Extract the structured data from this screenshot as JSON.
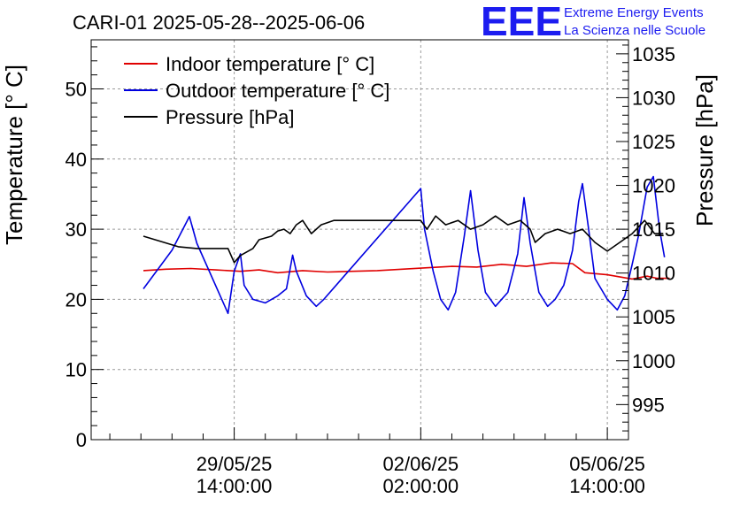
{
  "chart_data": {
    "type": "line",
    "title": "CARI-01 2025-05-28--2025-06-06",
    "ylabel_left": "Temperature [° C]",
    "ylabel_right": "Pressure [hPa]",
    "ylim_left": [
      0,
      57
    ],
    "ylim_right": [
      991,
      1036.6
    ],
    "xlim_days": [
      -1.15,
      3.17
    ],
    "legend_position": "top-left",
    "grid": true,
    "y_ticks_left": [
      "0",
      "10",
      "20",
      "30",
      "40",
      "50"
    ],
    "y_ticks_right": [
      "995",
      "1000",
      "1005",
      "1010",
      "1015",
      "1020",
      "1025",
      "1030",
      "1035"
    ],
    "x_ticks": [
      {
        "date": "29/05/25",
        "time": "14:00:00",
        "pos": 0.0
      },
      {
        "date": "02/06/25",
        "time": "02:00:00",
        "pos": 1.5
      },
      {
        "date": "05/06/25",
        "time": "14:00:00",
        "pos": 3.0
      }
    ],
    "series": [
      {
        "name": "Indoor temperature [° C]",
        "color": "#e00000",
        "axis": "left",
        "points": [
          [
            -0.73,
            24.1
          ],
          [
            -0.55,
            24.3
          ],
          [
            -0.35,
            24.4
          ],
          [
            -0.15,
            24.2
          ],
          [
            0.05,
            24.0
          ],
          [
            0.2,
            24.2
          ],
          [
            0.35,
            23.8
          ],
          [
            0.55,
            24.1
          ],
          [
            0.75,
            23.9
          ],
          [
            0.95,
            24.0
          ],
          [
            1.15,
            24.1
          ],
          [
            1.35,
            24.3
          ],
          [
            1.55,
            24.5
          ],
          [
            1.75,
            24.7
          ],
          [
            1.95,
            24.6
          ],
          [
            2.15,
            25.0
          ],
          [
            2.35,
            24.7
          ],
          [
            2.55,
            25.2
          ],
          [
            2.72,
            25.1
          ],
          [
            2.82,
            23.8
          ],
          [
            3.0,
            23.5
          ],
          [
            3.2,
            22.9
          ],
          [
            3.32,
            23.3
          ],
          [
            3.4,
            23.0
          ],
          [
            3.5,
            23.0
          ]
        ]
      },
      {
        "name": "Outdoor temperature [° C]",
        "color": "#0000e0",
        "axis": "left",
        "points": [
          [
            -0.73,
            21.5
          ],
          [
            -0.5,
            27.0
          ],
          [
            -0.36,
            31.8
          ],
          [
            -0.3,
            28.0
          ],
          [
            -0.05,
            18.0
          ],
          [
            0.0,
            24.0
          ],
          [
            0.05,
            26.5
          ],
          [
            0.08,
            22.0
          ],
          [
            0.15,
            20.0
          ],
          [
            0.25,
            19.5
          ],
          [
            0.35,
            20.5
          ],
          [
            0.42,
            21.5
          ],
          [
            0.47,
            26.3
          ],
          [
            0.5,
            24.0
          ],
          [
            0.58,
            20.5
          ],
          [
            0.66,
            19.0
          ],
          [
            0.72,
            20.0
          ],
          [
            1.5,
            35.8
          ],
          [
            1.53,
            30.0
          ],
          [
            1.6,
            24.0
          ],
          [
            1.66,
            20.0
          ],
          [
            1.72,
            18.5
          ],
          [
            1.78,
            21.0
          ],
          [
            1.85,
            29.0
          ],
          [
            1.9,
            35.5
          ],
          [
            1.96,
            27.0
          ],
          [
            2.02,
            21.0
          ],
          [
            2.1,
            19.0
          ],
          [
            2.2,
            21.0
          ],
          [
            2.28,
            26.5
          ],
          [
            2.33,
            34.5
          ],
          [
            2.38,
            28.0
          ],
          [
            2.45,
            21.0
          ],
          [
            2.52,
            19.0
          ],
          [
            2.58,
            20.0
          ],
          [
            2.65,
            22.0
          ],
          [
            2.72,
            27.0
          ],
          [
            2.77,
            34.0
          ],
          [
            2.8,
            36.5
          ],
          [
            2.85,
            30.0
          ],
          [
            2.9,
            23.0
          ],
          [
            3.0,
            20.0
          ],
          [
            3.08,
            18.5
          ],
          [
            3.14,
            20.5
          ],
          [
            3.2,
            25.0
          ],
          [
            3.25,
            29.0
          ],
          [
            3.32,
            36.0
          ],
          [
            3.37,
            37.5
          ],
          [
            3.42,
            30.0
          ],
          [
            3.46,
            26.0
          ]
        ]
      },
      {
        "name": "Pressure [hPa]",
        "color": "#000000",
        "axis": "right",
        "points": [
          [
            -0.73,
            1014.2
          ],
          [
            -0.45,
            1013.0
          ],
          [
            -0.3,
            1012.8
          ],
          [
            -0.05,
            1012.8
          ],
          [
            0.0,
            1011.2
          ],
          [
            0.05,
            1012.0
          ],
          [
            0.15,
            1012.8
          ],
          [
            0.2,
            1013.8
          ],
          [
            0.3,
            1014.2
          ],
          [
            0.35,
            1014.8
          ],
          [
            0.4,
            1015.0
          ],
          [
            0.45,
            1014.5
          ],
          [
            0.5,
            1015.5
          ],
          [
            0.55,
            1016.0
          ],
          [
            0.62,
            1014.5
          ],
          [
            0.7,
            1015.5
          ],
          [
            0.8,
            1016.0
          ],
          [
            1.5,
            1016.0
          ],
          [
            1.55,
            1015.0
          ],
          [
            1.62,
            1016.5
          ],
          [
            1.7,
            1015.5
          ],
          [
            1.8,
            1016.0
          ],
          [
            1.9,
            1015.0
          ],
          [
            2.0,
            1015.5
          ],
          [
            2.1,
            1016.5
          ],
          [
            2.2,
            1015.5
          ],
          [
            2.3,
            1016.0
          ],
          [
            2.38,
            1015.0
          ],
          [
            2.42,
            1013.5
          ],
          [
            2.5,
            1014.5
          ],
          [
            2.6,
            1015.0
          ],
          [
            2.7,
            1014.5
          ],
          [
            2.8,
            1015.0
          ],
          [
            2.9,
            1013.5
          ],
          [
            3.0,
            1012.5
          ],
          [
            3.1,
            1013.5
          ],
          [
            3.2,
            1014.5
          ],
          [
            3.3,
            1016.0
          ],
          [
            3.38,
            1014.5
          ],
          [
            3.45,
            1014.5
          ]
        ]
      }
    ]
  },
  "logo": {
    "mark": "EEE",
    "line1": "Extreme Energy Events",
    "line2": "La Scienza nelle Scuole"
  },
  "colors": {
    "logo": "#1c1cf0"
  }
}
